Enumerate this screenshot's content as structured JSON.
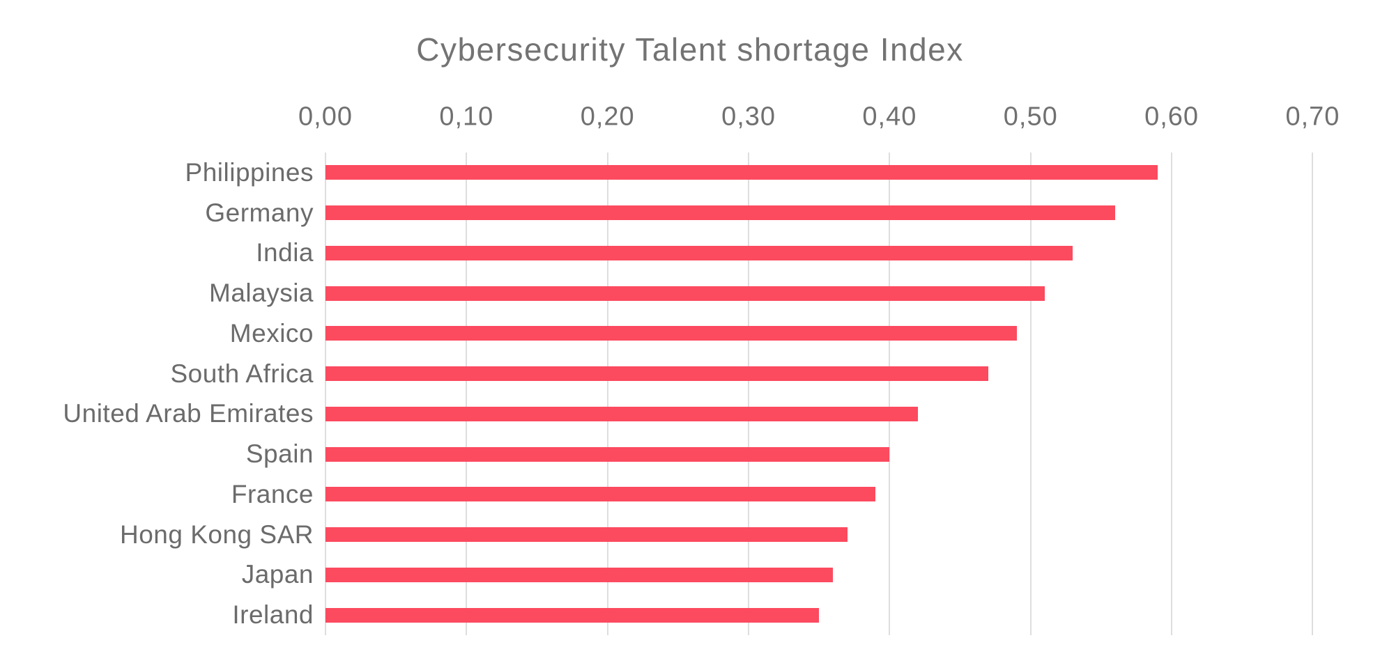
{
  "chart_data": {
    "type": "bar",
    "orientation": "horizontal",
    "title": "Cybersecurity Talent shortage Index",
    "categories": [
      "Philippines",
      "Germany",
      "India",
      "Malaysia",
      "Mexico",
      "South Africa",
      "United Arab Emirates",
      "Spain",
      "France",
      "Hong Kong SAR",
      "Japan",
      "Ireland"
    ],
    "values": [
      0.59,
      0.56,
      0.53,
      0.51,
      0.49,
      0.47,
      0.42,
      0.4,
      0.39,
      0.37,
      0.36,
      0.35
    ],
    "x_tick_labels": [
      "0,00",
      "0,10",
      "0,20",
      "0,30",
      "0,40",
      "0,50",
      "0,60",
      "0,70"
    ],
    "x_tick_values": [
      0.0,
      0.1,
      0.2,
      0.3,
      0.4,
      0.5,
      0.6,
      0.7
    ],
    "xlim": [
      0,
      0.7
    ],
    "xlabel": "",
    "ylabel": "",
    "grid": true,
    "axis_position": "top",
    "legend": "none",
    "bar_color": "#FC4A5F",
    "grid_color": "#DEDEDE",
    "title_color": "#737373",
    "tick_label_color": "#707070",
    "category_label_color": "#6B6B6B",
    "background_color": "#FFFFFF"
  }
}
